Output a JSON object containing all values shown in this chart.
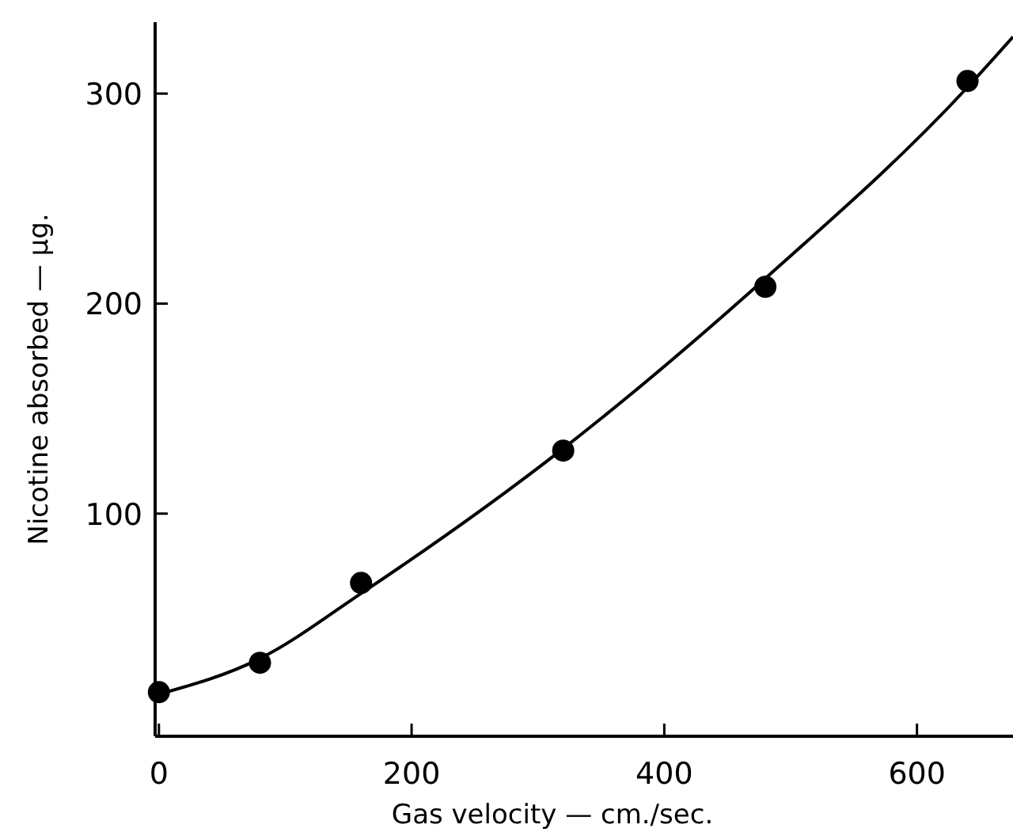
{
  "chart_data": {
    "type": "scatter",
    "xlabel": "Gas velocity — cm./sec.",
    "ylabel": "Nicotine absorbed — μg.",
    "xlim": [
      -3,
      676
    ],
    "ylim": [
      -6,
      334
    ],
    "xticks": [
      0,
      200,
      400,
      600
    ],
    "yticks": [
      100,
      200,
      300
    ],
    "grid": false,
    "series": [
      {
        "marker": "circle",
        "color": "#000000",
        "x": [
          0,
          80,
          160,
          320,
          480,
          640
        ],
        "values": [
          15,
          29,
          67,
          130,
          208,
          306
        ]
      },
      {
        "type": "line",
        "marker": "none",
        "line_style": "solid",
        "color": "#000000",
        "x": [
          0,
          80,
          160,
          320,
          480,
          640,
          676
        ],
        "values": [
          14,
          31,
          62,
          131,
          212,
          303,
          327
        ]
      }
    ]
  }
}
